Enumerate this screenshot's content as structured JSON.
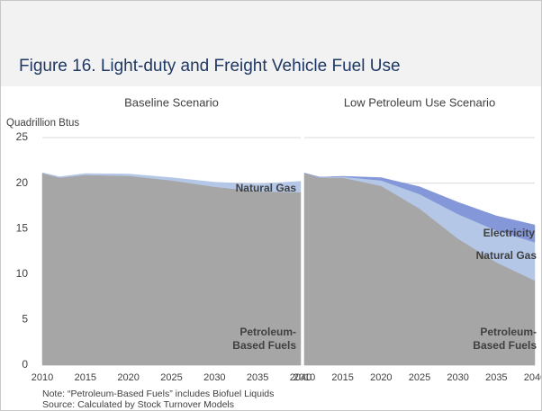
{
  "title": "Figure 16. Light-duty and Freight Vehicle Fuel Use",
  "chart_data": [
    {
      "type": "area",
      "title": "Baseline Scenario",
      "y_label": "Quadrillion Btus",
      "ytick_labels": true,
      "grid": true,
      "x": [
        2010,
        2012,
        2015,
        2020,
        2025,
        2030,
        2035,
        2040
      ],
      "xlim": [
        2010,
        2040
      ],
      "xticks": [
        2010,
        2015,
        2020,
        2025,
        2030,
        2035,
        2040
      ],
      "ylim": [
        0,
        25
      ],
      "yticks": [
        0,
        5,
        10,
        15,
        20,
        25
      ],
      "series": [
        {
          "name": "Petroleum-Based Fuels",
          "color": "#a6a6a6",
          "values": [
            21.1,
            20.6,
            20.9,
            20.8,
            20.3,
            19.6,
            19.1,
            19.0
          ]
        },
        {
          "name": "Natural Gas",
          "color": "#b4c7e7",
          "values": [
            0.05,
            0.1,
            0.15,
            0.2,
            0.3,
            0.5,
            0.8,
            1.2
          ]
        }
      ]
    },
    {
      "type": "area",
      "title": "Low Petroleum Use Scenario",
      "ytick_labels": false,
      "grid": true,
      "x": [
        2010,
        2012,
        2015,
        2020,
        2025,
        2030,
        2035,
        2040
      ],
      "xlim": [
        2010,
        2040
      ],
      "xticks": [
        2010,
        2015,
        2020,
        2025,
        2030,
        2035,
        2040
      ],
      "ylim": [
        0,
        25
      ],
      "yticks": [
        0,
        5,
        10,
        15,
        20,
        25
      ],
      "series": [
        {
          "name": "Petroleum-Based Fuels",
          "color": "#a6a6a6",
          "values": [
            21.1,
            20.6,
            20.6,
            19.7,
            17.2,
            13.9,
            11.3,
            9.3
          ]
        },
        {
          "name": "Natural Gas",
          "color": "#b4c7e7",
          "values": [
            0,
            0.05,
            0.1,
            0.6,
            1.6,
            2.7,
            3.5,
            4.2
          ]
        },
        {
          "name": "Electricity",
          "color": "#8497d9",
          "values": [
            0,
            0,
            0.05,
            0.3,
            0.8,
            1.3,
            1.6,
            1.9
          ]
        }
      ]
    }
  ],
  "notes": [
    "Note: “Petroleum-Based Fuels” includes Biofuel Liquids",
    "Source: Calculated by Stock Turnover Models"
  ]
}
